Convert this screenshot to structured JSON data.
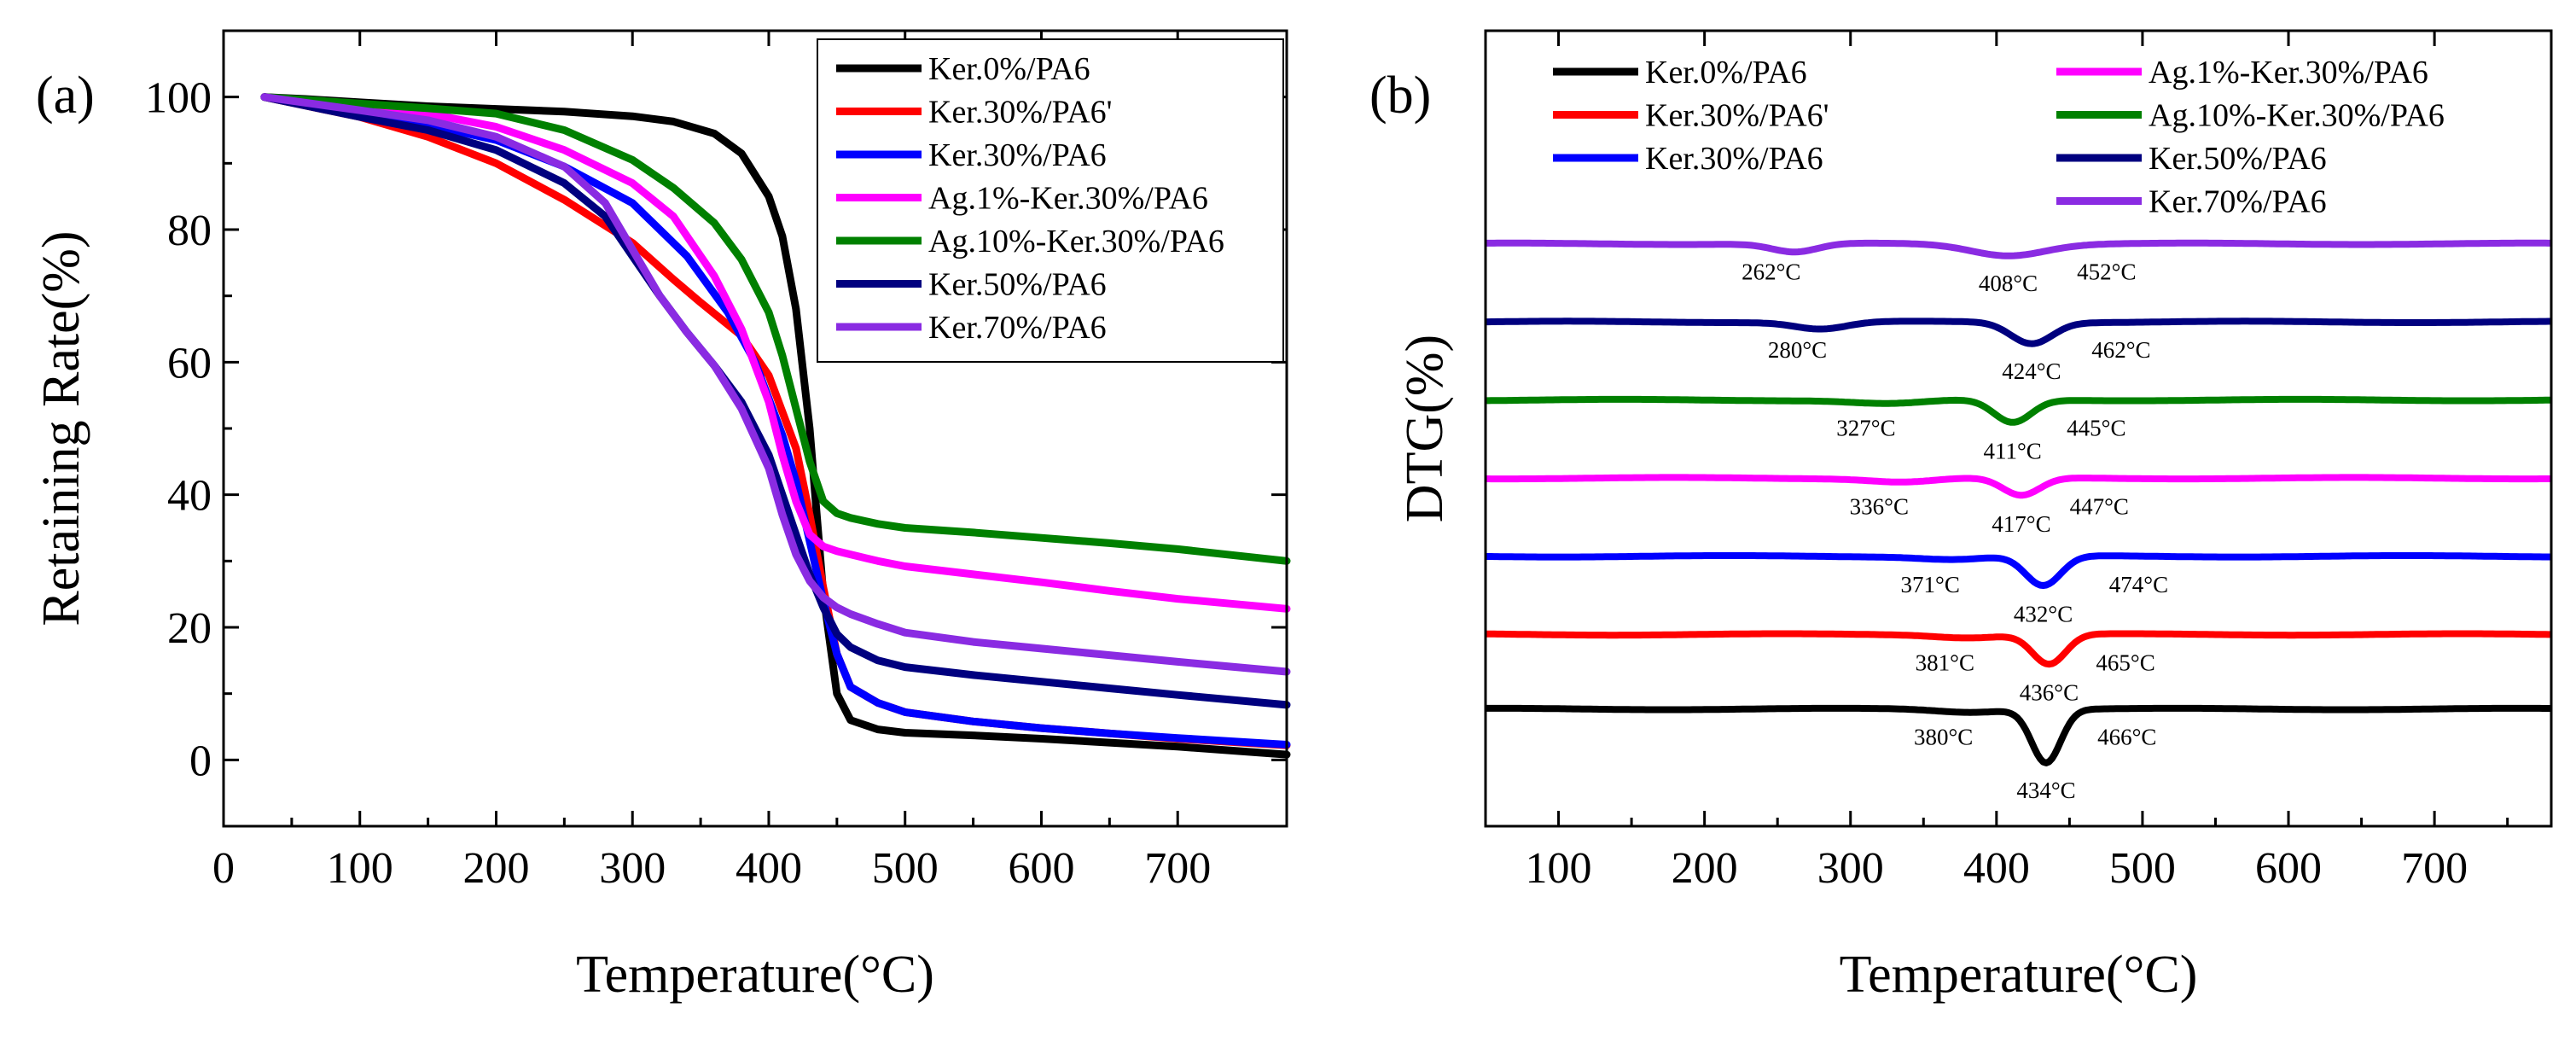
{
  "chart_data": [
    {
      "type": "line",
      "panel_label": "(a)",
      "xlabel": "Temperature(°C)",
      "ylabel": "Retaining Rate(%)",
      "xlim": [
        0,
        780
      ],
      "ylim": [
        -10,
        110
      ],
      "xticks": [
        0,
        100,
        200,
        300,
        400,
        500,
        600,
        700
      ],
      "yticks": [
        0,
        20,
        40,
        60,
        80,
        100
      ],
      "legend_position": "top-right",
      "series": [
        {
          "name": "Ker.0%/PA6",
          "color": "#000000",
          "x": [
            30,
            60,
            100,
            150,
            200,
            250,
            300,
            330,
            360,
            380,
            400,
            410,
            420,
            430,
            440,
            450,
            460,
            480,
            500,
            550,
            600,
            650,
            700,
            780
          ],
          "y": [
            100,
            99.7,
            99.2,
            98.6,
            98.2,
            97.8,
            97.1,
            96.3,
            94.5,
            91.5,
            85,
            79,
            68,
            50,
            25,
            10,
            6,
            4.6,
            4.1,
            3.7,
            3.2,
            2.6,
            2,
            0.8
          ]
        },
        {
          "name": "Ker.30%/PA6'",
          "color": "#ff0000",
          "x": [
            30,
            100,
            150,
            200,
            250,
            300,
            330,
            350,
            380,
            400,
            420,
            430,
            440,
            450,
            460,
            480,
            500,
            550,
            600,
            650,
            700,
            780
          ],
          "y": [
            100,
            97,
            94,
            90,
            84.5,
            78,
            72.5,
            69,
            64,
            58,
            47,
            37,
            26,
            16,
            11,
            8.6,
            7.2,
            5.8,
            4.8,
            4,
            3.2,
            2.2
          ]
        },
        {
          "name": "Ker.30%/PA6",
          "color": "#0000ff",
          "x": [
            30,
            100,
            150,
            200,
            250,
            300,
            340,
            370,
            390,
            410,
            420,
            430,
            440,
            450,
            460,
            480,
            500,
            550,
            600,
            650,
            700,
            780
          ],
          "y": [
            100,
            97.5,
            95.8,
            93.5,
            89.5,
            84,
            76,
            67.5,
            60,
            49,
            42,
            33,
            24,
            16,
            11,
            8.6,
            7.2,
            5.8,
            4.8,
            4,
            3.3,
            2.3
          ]
        },
        {
          "name": "Ag.1%-Ker.30%/PA6",
          "color": "#ff00ff",
          "x": [
            30,
            100,
            150,
            200,
            250,
            300,
            330,
            360,
            380,
            400,
            410,
            420,
            430,
            440,
            450,
            460,
            480,
            500,
            550,
            600,
            650,
            700,
            780
          ],
          "y": [
            100,
            98.5,
            97.5,
            95.5,
            92,
            87,
            82,
            73,
            65,
            54,
            46,
            39,
            34,
            32.2,
            31.5,
            31,
            30,
            29.2,
            28,
            26.8,
            25.5,
            24.3,
            22.8
          ]
        },
        {
          "name": "Ag.10%-Ker.30%/PA6",
          "color": "#008000",
          "x": [
            30,
            100,
            150,
            200,
            250,
            300,
            330,
            360,
            380,
            400,
            410,
            420,
            430,
            440,
            450,
            460,
            480,
            500,
            550,
            600,
            650,
            700,
            780
          ],
          "y": [
            100,
            99,
            98.3,
            97.5,
            95,
            90.5,
            86.3,
            81,
            75.5,
            67.5,
            61,
            53,
            45,
            39,
            37.2,
            36.5,
            35.6,
            35,
            34.3,
            33.5,
            32.7,
            31.8,
            30
          ]
        },
        {
          "name": "Ker.50%/PA6",
          "color": "#00007f",
          "x": [
            30,
            100,
            150,
            200,
            250,
            280,
            300,
            320,
            340,
            360,
            380,
            400,
            410,
            420,
            430,
            440,
            450,
            460,
            480,
            500,
            550,
            600,
            650,
            700,
            780
          ],
          "y": [
            100,
            97,
            95,
            92,
            87,
            82,
            76,
            70,
            64.5,
            59.5,
            54,
            46,
            40,
            34,
            28,
            23,
            19,
            17,
            15,
            14,
            12.8,
            11.8,
            10.8,
            9.8,
            8.3
          ]
        },
        {
          "name": "Ker.70%/PA6",
          "color": "#8a2be2",
          "x": [
            30,
            100,
            150,
            200,
            250,
            280,
            300,
            320,
            340,
            360,
            380,
            400,
            410,
            420,
            430,
            440,
            450,
            460,
            480,
            500,
            550,
            600,
            650,
            700,
            780
          ],
          "y": [
            100,
            98,
            96.5,
            94,
            89.5,
            84,
            77,
            70,
            64.5,
            59.5,
            53,
            44,
            37,
            31,
            27,
            24.5,
            23,
            22,
            20.5,
            19.2,
            17.8,
            16.8,
            15.8,
            14.8,
            13.3
          ]
        }
      ]
    },
    {
      "type": "line",
      "panel_label": "(b)",
      "xlabel": "Temperature(°C)",
      "ylabel": "DTG(%)",
      "xlim": [
        50,
        780
      ],
      "xticks": [
        100,
        200,
        300,
        400,
        500,
        600,
        700
      ],
      "legend_position": "top",
      "baselines": [
        70,
        59,
        48,
        37,
        26,
        15,
        4.5
      ],
      "series": [
        {
          "name": "Ker.0%/PA6",
          "color": "#000000",
          "baseline": 4.5,
          "dips": [
            {
              "t": 380,
              "depth": 0.4,
              "w": 30
            },
            {
              "t": 434,
              "depth": 7.5,
              "w": 14
            }
          ],
          "annotations": [
            "380°C",
            "434°C",
            "466°C"
          ]
        },
        {
          "name": "Ker.30%/PA6'",
          "color": "#ff0000",
          "baseline": 15,
          "dips": [
            {
              "t": 381,
              "depth": 0.4,
              "w": 30
            },
            {
              "t": 436,
              "depth": 4.2,
              "w": 16
            }
          ],
          "annotations": [
            "381°C",
            "436°C",
            "465°C"
          ]
        },
        {
          "name": "Ker.30%/PA6",
          "color": "#0000ff",
          "baseline": 26,
          "dips": [
            {
              "t": 371,
              "depth": 0.4,
              "w": 30
            },
            {
              "t": 432,
              "depth": 4.2,
              "w": 17
            }
          ],
          "annotations": [
            "371°C",
            "432°C",
            "474°C"
          ]
        },
        {
          "name": "Ag.1%-Ker.30%/PA6",
          "color": "#ff00ff",
          "baseline": 37,
          "dips": [
            {
              "t": 336,
              "depth": 0.5,
              "w": 30
            },
            {
              "t": 417,
              "depth": 2.5,
              "w": 18
            }
          ],
          "annotations": [
            "336°C",
            "417°C",
            "447°C"
          ]
        },
        {
          "name": "Ag.10%-Ker.30%/PA6",
          "color": "#008000",
          "baseline": 48,
          "dips": [
            {
              "t": 327,
              "depth": 0.5,
              "w": 35
            },
            {
              "t": 411,
              "depth": 3.2,
              "w": 18
            }
          ],
          "annotations": [
            "327°C",
            "411°C",
            "445°C"
          ]
        },
        {
          "name": "Ker.50%/PA6",
          "color": "#00007f",
          "baseline": 59,
          "dips": [
            {
              "t": 280,
              "depth": 1.0,
              "w": 25
            },
            {
              "t": 424,
              "depth": 3.0,
              "w": 20
            }
          ],
          "annotations": [
            "280°C",
            "424°C",
            "462°C"
          ]
        },
        {
          "name": "Ker.70%/PA6",
          "color": "#8a2be2",
          "baseline": 70,
          "dips": [
            {
              "t": 262,
              "depth": 1.2,
              "w": 22
            },
            {
              "t": 408,
              "depth": 1.6,
              "w": 35
            }
          ],
          "annotations": [
            "262°C",
            "408°C",
            "452°C"
          ]
        }
      ]
    }
  ]
}
